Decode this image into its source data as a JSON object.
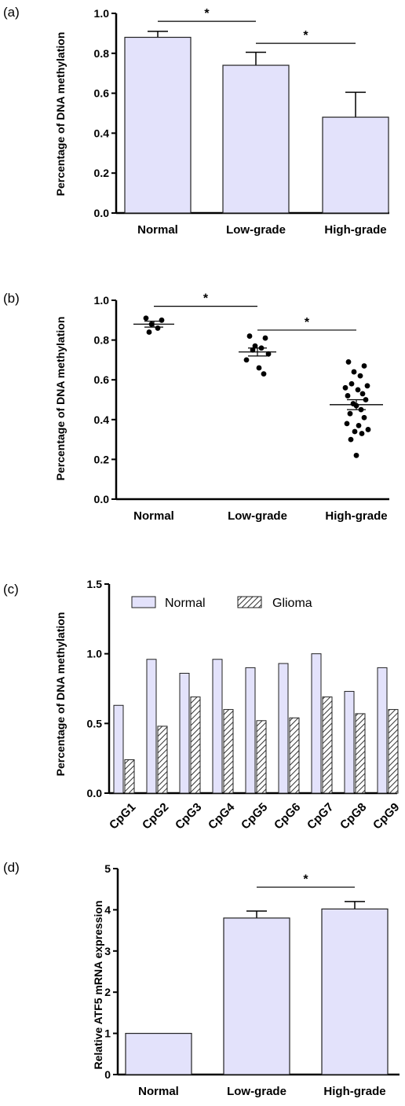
{
  "panels": [
    {
      "label": "(a)",
      "chart_data": {
        "type": "bar",
        "ylabel": "Percentage of DNA methylation",
        "xlabel": "",
        "ylim": [
          0,
          1.0
        ],
        "yticks": [
          "0.0",
          "0.2",
          "0.4",
          "0.6",
          "0.8",
          "1.0"
        ],
        "categories": [
          "Normal",
          "Low-grade",
          "High-grade"
        ],
        "values": [
          0.88,
          0.74,
          0.48
        ],
        "errors": [
          0.03,
          0.065,
          0.125
        ],
        "significance": [
          {
            "from": "Normal",
            "to": "Low-grade",
            "y": 0.96,
            "label": "*"
          },
          {
            "from": "Low-grade",
            "to": "High-grade",
            "y": 0.85,
            "label": "*"
          }
        ]
      }
    },
    {
      "label": "(b)",
      "chart_data": {
        "type": "scatter",
        "ylabel": "Percentage of DNA methylation",
        "xlabel": "",
        "ylim": [
          0,
          1.0
        ],
        "yticks": [
          "0.0",
          "0.2",
          "0.4",
          "0.6",
          "0.8",
          "1.0"
        ],
        "categories": [
          "Normal",
          "Low-grade",
          "High-grade"
        ],
        "means": [
          0.88,
          0.74,
          0.475
        ],
        "sem": [
          0.015,
          0.02,
          0.025
        ],
        "points": [
          [
            0.91,
            0.9,
            0.88,
            0.86,
            0.84
          ],
          [
            0.82,
            0.81,
            0.77,
            0.76,
            0.75,
            0.73,
            0.7,
            0.66,
            0.63
          ],
          [
            0.69,
            0.67,
            0.64,
            0.62,
            0.58,
            0.57,
            0.56,
            0.55,
            0.53,
            0.52,
            0.5,
            0.48,
            0.47,
            0.45,
            0.43,
            0.41,
            0.38,
            0.37,
            0.35,
            0.34,
            0.33,
            0.3,
            0.22
          ]
        ],
        "significance": [
          {
            "from": "Normal",
            "to": "Low-grade",
            "y": 0.97,
            "label": "*"
          },
          {
            "from": "Low-grade",
            "to": "High-grade",
            "y": 0.85,
            "label": "*"
          }
        ]
      }
    },
    {
      "label": "(c)",
      "chart_data": {
        "type": "bar",
        "ylabel": "Percentage of DNA methylation",
        "xlabel": "",
        "ylim": [
          0,
          1.5
        ],
        "yticks": [
          "0.0",
          "0.5",
          "1.0",
          "1.5"
        ],
        "categories": [
          "CpG1",
          "CpG2",
          "CpG3",
          "CpG4",
          "CpG5",
          "CpG6",
          "CpG7",
          "CpG8",
          "CpG9"
        ],
        "series": [
          {
            "name": "Normal",
            "values": [
              0.63,
              0.96,
              0.86,
              0.96,
              0.9,
              0.93,
              1.0,
              0.73,
              0.9
            ]
          },
          {
            "name": "Glioma",
            "values": [
              0.24,
              0.48,
              0.69,
              0.6,
              0.52,
              0.54,
              0.69,
              0.57,
              0.6
            ]
          }
        ],
        "legend": "top"
      }
    },
    {
      "label": "(d)",
      "chart_data": {
        "type": "bar",
        "ylabel": "Relative ATF5 mRNA expression",
        "xlabel": "",
        "ylim": [
          0,
          5
        ],
        "yticks": [
          "0",
          "1",
          "2",
          "3",
          "4",
          "5"
        ],
        "categories": [
          "Normal",
          "Low-grade",
          "High-grade"
        ],
        "values": [
          1.0,
          3.8,
          4.02
        ],
        "errors": [
          0,
          0.17,
          0.18
        ],
        "significance": [
          {
            "from": "Low-grade",
            "to": "High-grade",
            "y": 4.55,
            "label": "*"
          }
        ]
      }
    }
  ],
  "colors": {
    "bar_fill": "#e3e2fb",
    "bar_stroke": "#222222",
    "axis": "#000000"
  }
}
